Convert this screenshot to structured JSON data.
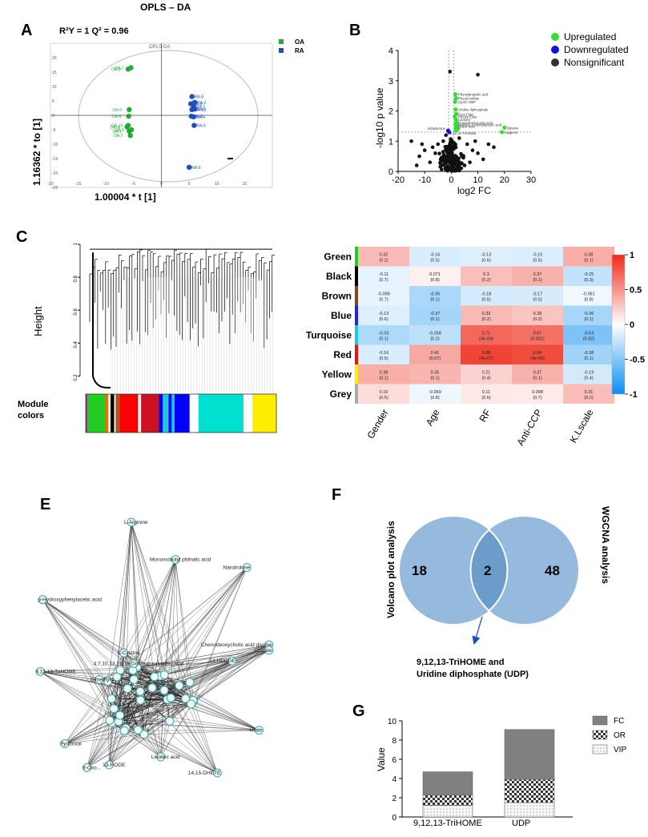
{
  "figure": {
    "top_title": "OPLS – DA"
  },
  "colors": {
    "oa": "#22aa33",
    "ra": "#1f4fbf",
    "up": "#33dd33",
    "down": "#1111dd",
    "ns": "#111111",
    "heat_pos": "#f04020",
    "heat_neg": "#1a9ae8",
    "venn": "#8fb6dc",
    "venn_overlap": "#6b9cca",
    "fc": "#808080",
    "vip": "#f2f2f2"
  },
  "chart_data": [
    {
      "id": "A",
      "type": "scatter",
      "panel_label": "A",
      "stats_label": "R²Y = 1  Q² = 0.96",
      "inner_title": "OPLS-DA",
      "xlabel": "1.00004 * t [1]",
      "ylabel": "1.16362 * to [1]",
      "xlim": [
        -20,
        20
      ],
      "ylim": [
        -25,
        25
      ],
      "xticks": [
        -20,
        -15,
        -10,
        -5,
        0,
        5,
        10,
        15
      ],
      "yticks": [
        -25,
        -20,
        -15,
        -10,
        -5,
        0,
        5,
        10,
        15,
        20
      ],
      "legend": [
        "OA",
        "RA"
      ],
      "series": [
        {
          "name": "OA",
          "points": [
            {
              "label": "OA-2",
              "x": -5.5,
              "y": 16.5
            },
            {
              "label": "OA-8",
              "x": -6.0,
              "y": 16.0
            },
            {
              "label": "OA-6",
              "x": -5.8,
              "y": 2.0
            },
            {
              "label": "OA-5",
              "x": -5.9,
              "y": -0.3
            },
            {
              "label": "OA-10",
              "x": -6.0,
              "y": -3.5
            },
            {
              "label": "OA-4",
              "x": -6.2,
              "y": -4.0
            },
            {
              "label": "OA-1",
              "x": -5.8,
              "y": -5.5
            },
            {
              "label": "OA-9",
              "x": -5.4,
              "y": -5.0
            },
            {
              "label": "OA-7",
              "x": -5.6,
              "y": -7.0
            }
          ]
        },
        {
          "name": "RA",
          "points": [
            {
              "label": "RA-8",
              "x": 5.5,
              "y": 6.5
            },
            {
              "label": "RA-9",
              "x": 5.3,
              "y": 4.0
            },
            {
              "label": "RA-2",
              "x": 6.0,
              "y": 4.5
            },
            {
              "label": "RA-7",
              "x": 5.8,
              "y": 3.0
            },
            {
              "label": "RA-10",
              "x": 5.5,
              "y": 2.0
            },
            {
              "label": "RA-1",
              "x": 6.0,
              "y": 2.2
            },
            {
              "label": "RA-3",
              "x": 5.4,
              "y": -0.3
            },
            {
              "label": "RA-4",
              "x": 5.8,
              "y": -0.5
            },
            {
              "label": "RA-6",
              "x": 5.9,
              "y": -3.5
            },
            {
              "label": "RA-5",
              "x": 5.0,
              "y": -18.0
            }
          ]
        }
      ]
    },
    {
      "id": "B",
      "type": "scatter",
      "panel_label": "B",
      "xlabel": "log2 FC",
      "ylabel": "-log10 p value",
      "xlim": [
        -20,
        30
      ],
      "ylim": [
        0,
        4
      ],
      "xticks": [
        -20,
        -10,
        0,
        10,
        20,
        30
      ],
      "yticks": [
        0,
        1,
        2,
        3,
        4
      ],
      "legend": [
        "Upregulated",
        "Downregulated",
        "Nonsignificant"
      ],
      "up_points": [
        [
          1.5,
          2.55
        ],
        [
          1.8,
          2.42
        ],
        [
          1.4,
          2.3
        ],
        [
          1.6,
          2.05
        ],
        [
          1.9,
          1.9
        ],
        [
          1.3,
          1.82
        ],
        [
          1.7,
          1.72
        ],
        [
          2.0,
          1.62
        ],
        [
          1.5,
          1.55
        ],
        [
          2.2,
          1.5
        ],
        [
          1.6,
          1.42
        ],
        [
          2.4,
          1.4
        ],
        [
          1.8,
          1.35
        ],
        [
          20,
          1.45
        ],
        [
          19,
          1.3
        ]
      ],
      "down_points": [
        [
          -1.2,
          1.35
        ],
        [
          -0.8,
          1.3
        ]
      ],
      "ns_points": [
        [
          -0.5,
          3.3
        ],
        [
          10,
          3.2
        ],
        [
          -3,
          1.0
        ],
        [
          -5,
          0.9
        ],
        [
          -7,
          0.8
        ],
        [
          -10,
          0.7
        ],
        [
          -12,
          0.5
        ],
        [
          -4,
          0.4
        ],
        [
          6,
          0.9
        ],
        [
          8,
          0.7
        ],
        [
          10,
          0.6
        ],
        [
          4,
          0.5
        ],
        [
          12,
          0.4
        ],
        [
          14,
          0.9
        ],
        [
          -2,
          1.2
        ],
        [
          3,
          1.1
        ],
        [
          -8,
          0.3
        ],
        [
          -13,
          0.2
        ],
        [
          7,
          0.3
        ],
        [
          -1,
          0.6
        ],
        [
          1,
          0.8
        ],
        [
          2,
          0.4
        ],
        [
          -2,
          0.3
        ],
        [
          5,
          0.2
        ],
        [
          -6,
          0.6
        ],
        [
          9,
          1.0
        ],
        [
          16,
          0.8
        ],
        [
          -11,
          0.9
        ],
        [
          -15,
          1.0
        ]
      ],
      "annotations": [
        "Phenylpropiolic acid",
        "Phenyl sulfate",
        "Cyclic GMP",
        "Uridine diphosphate",
        "Cros Ester",
        "Ethoxy Ester",
        "Lactone",
        "Guanidinosuccinic acid",
        "Hydroxy-3-methylbutyric acid",
        "Quinic acid",
        "Aldosterone",
        "9,12,13-TriHOME",
        "Betaine",
        "Apigenin"
      ]
    },
    {
      "id": "C_dendro",
      "type": "dendrogram",
      "panel_label": "C",
      "ylabel": "Height",
      "yticks": [
        0.2,
        0.4,
        0.6,
        0.8,
        1.0
      ],
      "module_label": "Module colors",
      "module_segments": [
        {
          "color": "#9c27b0",
          "w": 0.5
        },
        {
          "color": "#22cc22",
          "w": 6
        },
        {
          "color": "#ff6600",
          "w": 1
        },
        {
          "color": "#ffffff",
          "w": 0.8
        },
        {
          "color": "#000000",
          "w": 1.2
        },
        {
          "color": "#ffffff",
          "w": 0.5
        },
        {
          "color": "#aa5522",
          "w": 1.5
        },
        {
          "color": "#ff0000",
          "w": 6
        },
        {
          "color": "#ffffff",
          "w": 1
        },
        {
          "color": "#cc1122",
          "w": 6
        },
        {
          "color": "#0000ff",
          "w": 1.2
        },
        {
          "color": "#1ec8e0",
          "w": 2
        },
        {
          "color": "#0000ff",
          "w": 1
        },
        {
          "color": "#1ec8e0",
          "w": 1
        },
        {
          "color": "#0000ff",
          "w": 5
        },
        {
          "color": "#ffffff",
          "w": 3
        },
        {
          "color": "#00e0d0",
          "w": 15
        },
        {
          "color": "#ffffff",
          "w": 3
        },
        {
          "color": "#ffee00",
          "w": 8
        }
      ]
    },
    {
      "id": "C_heatmap",
      "type": "heatmap",
      "rows": [
        "Green",
        "Black",
        "Brown",
        "Blue",
        "Turquoise",
        "Red",
        "Yellow",
        "Grey"
      ],
      "row_colors": [
        "#22cc22",
        "#000000",
        "#8b4513",
        "#2222ee",
        "#1ec8e0",
        "#ee1111",
        "#ffee00",
        "#aaaaaa"
      ],
      "cols": [
        "Gender",
        "Age",
        "RF",
        "Anti-CCP",
        "K.Lscale"
      ],
      "values": [
        [
          0.32,
          -0.16,
          -0.13,
          -0.15,
          0.38
        ],
        [
          -0.11,
          0.071,
          0.3,
          0.37,
          -0.25
        ],
        [
          -0.098,
          -0.35,
          -0.18,
          -0.17,
          -0.061
        ],
        [
          -0.13,
          -0.37,
          0.33,
          0.28,
          -0.36
        ],
        [
          -0.33,
          -0.268,
          0.71,
          0.67,
          -0.53
        ],
        [
          -0.16,
          0.41,
          0.88,
          0.84,
          -0.38
        ],
        [
          0.38,
          0.35,
          0.21,
          0.37,
          -0.19
        ],
        [
          0.16,
          -0.069,
          0.11,
          0.098,
          0.31
        ]
      ],
      "pvalues": [
        [
          "(0.2)",
          "(0.5)",
          "(0.6)",
          "(0.5)",
          "(0.1)"
        ],
        [
          "(0.7)",
          "(0.8)",
          "(0.2)",
          "(0.1)",
          "(0.3)"
        ],
        [
          "(0.7)",
          "(0.1)",
          "(0.5)",
          "(0.5)",
          "(0.8)"
        ],
        [
          "(0.6)",
          "(0.1)",
          "(0.2)",
          "(0.2)",
          "(0.1)"
        ],
        [
          "(0.1)",
          "(0.2)",
          "(4e-04)",
          "(0.001)",
          "(0.02)"
        ],
        [
          "(0.5)",
          "(0.07)",
          "(4e-07)",
          "(4e-06)",
          "(0.1)"
        ],
        [
          "(0.1)",
          "(0.1)",
          "(0.4)",
          "(0.1)",
          "(0.4)"
        ],
        [
          "(0.5)",
          "(0.8)",
          "(0.6)",
          "(0.7)",
          "(0.2)"
        ]
      ],
      "vals_text": [
        [
          "0.32",
          "-0.16",
          "-0.13",
          "-0.15",
          "0.38"
        ],
        [
          "-0.11",
          "0.071",
          "0.3",
          "0.37",
          "-0.25"
        ],
        [
          "-0.098",
          "-0.35",
          "-0.18",
          "-0.17",
          "-0.061"
        ],
        [
          "-0.13",
          "-0.37",
          "0.33",
          "0.28",
          "-0.36"
        ],
        [
          "-0.33",
          "-0.268",
          "0.71",
          "0.67",
          "-0.53"
        ],
        [
          "-0.16",
          "0.41",
          "0.88",
          "0.84",
          "-0.38"
        ],
        [
          "0.38",
          "0.35",
          "0.21",
          "0.37",
          "-0.19"
        ],
        [
          "0.16",
          "-0.069",
          "0.11",
          "0.098",
          "0.31"
        ]
      ],
      "scale_ticks": [
        "1",
        "0.5",
        "0",
        "-0.5",
        "-1"
      ],
      "scale_values": [
        1,
        0.5,
        0,
        -0.5,
        -1
      ]
    },
    {
      "id": "E",
      "type": "network",
      "panel_label": "E",
      "nodes": [
        {
          "name": "L-Arginine",
          "x": 0.41,
          "y": 0.03
        },
        {
          "name": "Monoisobutyl phthalic acid",
          "x": 0.59,
          "y": 0.17
        },
        {
          "name": "Nandrolone",
          "x": 0.88,
          "y": 0.2
        },
        {
          "name": "p-Hydroxyphenylacetic acid",
          "x": 0.05,
          "y": 0.32
        },
        {
          "name": "Chenodeoxycholic acid glycine",
          "x": 0.97,
          "y": 0.49
        },
        {
          "name": "9,12,13-TriHOME",
          "x": 0.04,
          "y": 0.59
        },
        {
          "name": "Dimethylg...",
          "x": 0.28,
          "y": 0.62
        },
        {
          "name": "L-Cystine",
          "x": 0.38,
          "y": 0.52
        },
        {
          "name": "Pyridoxal",
          "x": 0.14,
          "y": 0.86
        },
        {
          "name": "9-Oxo...",
          "x": 0.23,
          "y": 0.95
        },
        {
          "name": "13-HODE",
          "x": 0.32,
          "y": 0.94
        },
        {
          "name": "Linoleic acid",
          "x": 0.53,
          "y": 0.91
        },
        {
          "name": "14,15-DHETE",
          "x": 0.76,
          "y": 0.97
        },
        {
          "name": "Urate",
          "x": 0.93,
          "y": 0.81
        },
        {
          "name": "Cholate",
          "x": 0.97,
          "y": 0.51
        },
        {
          "name": "13-HPODE",
          "x": 0.82,
          "y": 0.55
        },
        {
          "name": "4,7,10,13,16,19-Docosahexaenoic acid",
          "x": 0.42,
          "y": 0.56
        }
      ]
    },
    {
      "id": "F",
      "type": "venn",
      "panel_label": "F",
      "left_label": "Volcano plot analysis",
      "right_label": "WGCNA analysis",
      "left_only": "18",
      "overlap": "2",
      "right_only": "48",
      "result_text": [
        "9,12,13-TriHOME and",
        "Uridine diphosphate (UDP)"
      ]
    },
    {
      "id": "G",
      "type": "bar",
      "panel_label": "G",
      "stacked": true,
      "categories": [
        "9,12,13-TriHOME",
        "UDP"
      ],
      "series": [
        {
          "name": "VIP",
          "values": [
            1.2,
            1.5
          ]
        },
        {
          "name": "OR",
          "values": [
            1.1,
            2.4
          ]
        },
        {
          "name": "FC",
          "values": [
            2.4,
            5.2
          ]
        }
      ],
      "ylabel": "Value",
      "ylim": [
        0,
        10
      ],
      "yticks": [
        0,
        2,
        4,
        6,
        8,
        10
      ],
      "legend": [
        "FC",
        "OR",
        "VIP"
      ]
    }
  ]
}
